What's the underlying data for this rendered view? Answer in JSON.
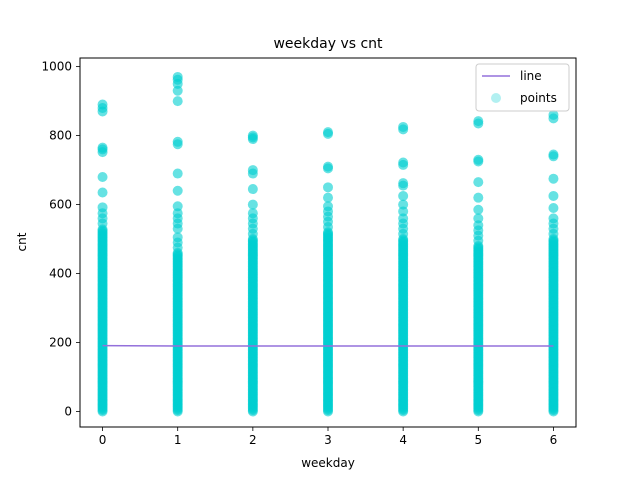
{
  "chart_data": {
    "type": "scatter",
    "title": "weekday vs cnt",
    "xlabel": "weekday",
    "ylabel": "cnt",
    "xlim": [
      -0.3,
      6.3
    ],
    "ylim": [
      -45,
      1025
    ],
    "xticks": [
      0,
      1,
      2,
      3,
      4,
      5,
      6
    ],
    "yticks": [
      0,
      200,
      400,
      600,
      800,
      1000
    ],
    "grid": false,
    "legend_position": "top-right",
    "series": [
      {
        "name": "line",
        "kind": "line",
        "color": "#9370DB",
        "x": [
          0,
          1,
          2,
          3,
          4,
          5,
          6
        ],
        "y": [
          191,
          190,
          190,
          190,
          190,
          190,
          190
        ]
      },
      {
        "name": "points",
        "kind": "scatter",
        "color": "#00CED1",
        "columns": [
          {
            "x": 0,
            "dense_range": [
              0,
              530
            ],
            "outliers": [
              545,
              560,
              575,
              592,
              635,
              680,
              752,
              760,
              765,
              870,
              880,
              890
            ]
          },
          {
            "x": 1,
            "dense_range": [
              0,
              460
            ],
            "outliers": [
              475,
              490,
              505,
              530,
              545,
              560,
              575,
              595,
              640,
              690,
              775,
              782,
              900,
              930,
              950,
              962,
              970
            ]
          },
          {
            "x": 2,
            "dense_range": [
              0,
              500
            ],
            "outliers": [
              515,
              530,
              545,
              560,
              575,
              600,
              645,
              690,
              700,
              790,
              795,
              800
            ]
          },
          {
            "x": 3,
            "dense_range": [
              0,
              520
            ],
            "outliers": [
              535,
              550,
              565,
              580,
              595,
              620,
              650,
              705,
              710,
              805,
              810
            ]
          },
          {
            "x": 4,
            "dense_range": [
              0,
              500
            ],
            "outliers": [
              515,
              530,
              545,
              560,
              580,
              600,
              625,
              655,
              662,
              715,
              722,
              818,
              825
            ]
          },
          {
            "x": 5,
            "dense_range": [
              0,
              480
            ],
            "outliers": [
              495,
              510,
              525,
              540,
              560,
              585,
              620,
              665,
              725,
              730,
              835,
              842
            ]
          },
          {
            "x": 6,
            "dense_range": [
              0,
              500
            ],
            "outliers": [
              515,
              530,
              545,
              560,
              590,
              625,
              675,
              740,
              745,
              850,
              860
            ]
          }
        ]
      }
    ]
  }
}
